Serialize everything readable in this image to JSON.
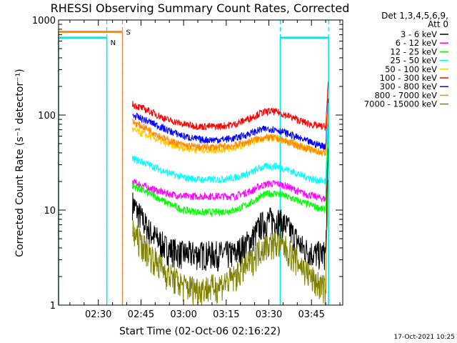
{
  "chart_data": {
    "type": "line",
    "title": "RHESSI Observing Summary Count Rates, Corrected",
    "xlabel": "Start Time (02-Oct-06 02:16:22)",
    "ylabel": "Corrected Count Rate (s⁻¹ detector⁻¹)",
    "yscale": "log",
    "ylim": [
      1,
      1000
    ],
    "xlim_minutes": [
      0,
      100
    ],
    "x_ticks": [
      {
        "minute": 14,
        "label": "02:30"
      },
      {
        "minute": 29,
        "label": "02:45"
      },
      {
        "minute": 44,
        "label": "03:00"
      },
      {
        "minute": 59,
        "label": "03:15"
      },
      {
        "minute": 74,
        "label": "03:30"
      },
      {
        "minute": 89,
        "label": "03:45"
      }
    ],
    "y_ticks": [
      {
        "value": 1,
        "label": "1"
      },
      {
        "value": 10,
        "label": "10"
      },
      {
        "value": 100,
        "label": "100"
      },
      {
        "value": 1000,
        "label": "1000"
      }
    ],
    "legend_header": [
      "Det 1,3,4,5,6,9,",
      "Att 0"
    ],
    "legend_placement": "right",
    "series": [
      {
        "name": "3 - 6 keV",
        "color": "#000000",
        "x": [
          26,
          32,
          38,
          44,
          50,
          56,
          62,
          68,
          71,
          74,
          77,
          80,
          86,
          90,
          94,
          95
        ],
        "y": [
          12,
          6,
          4,
          3.5,
          3.5,
          3.5,
          3.5,
          5,
          7,
          8,
          8,
          7,
          4,
          3.5,
          3.5,
          60
        ]
      },
      {
        "name": "6 - 12 keV",
        "color": "#ff00ff",
        "x": [
          26,
          32,
          38,
          44,
          50,
          56,
          62,
          68,
          71,
          74,
          77,
          80,
          86,
          90,
          94,
          95
        ],
        "y": [
          20,
          17,
          15,
          14,
          14,
          14,
          14,
          16,
          18,
          19,
          19,
          18,
          15,
          14,
          13,
          100
        ]
      },
      {
        "name": "12 - 25 keV",
        "color": "#00ff00",
        "x": [
          26,
          32,
          38,
          44,
          50,
          56,
          62,
          68,
          71,
          74,
          77,
          80,
          86,
          90,
          94,
          95
        ],
        "y": [
          18,
          15,
          12,
          10,
          9.5,
          9.5,
          10,
          12,
          14,
          15,
          15,
          14,
          12,
          11,
          10,
          90
        ]
      },
      {
        "name": "25 - 50 keV",
        "color": "#00ffff",
        "x": [
          26,
          32,
          38,
          44,
          50,
          56,
          62,
          68,
          71,
          74,
          77,
          80,
          86,
          90,
          94,
          95
        ],
        "y": [
          35,
          30,
          25,
          22,
          21,
          21,
          22,
          25,
          28,
          29,
          29,
          27,
          23,
          21,
          20,
          150
        ]
      },
      {
        "name": "50 - 100 keV",
        "color": "#ffcc00",
        "x": [
          26,
          32,
          38,
          44,
          50,
          56,
          62,
          68,
          71,
          74,
          77,
          80,
          86,
          90,
          94,
          95
        ],
        "y": [
          70,
          60,
          50,
          45,
          43,
          43,
          45,
          52,
          57,
          58,
          57,
          54,
          46,
          43,
          40,
          200
        ]
      },
      {
        "name": "100 - 300 keV",
        "color": "#ff0000",
        "x": [
          26,
          32,
          38,
          44,
          50,
          56,
          62,
          68,
          71,
          74,
          77,
          80,
          86,
          90,
          94,
          95
        ],
        "y": [
          130,
          110,
          90,
          80,
          76,
          76,
          80,
          95,
          105,
          110,
          108,
          100,
          85,
          78,
          75,
          250
        ]
      },
      {
        "name": "300 - 800 keV",
        "color": "#0000ff",
        "x": [
          26,
          32,
          38,
          44,
          50,
          56,
          62,
          68,
          71,
          74,
          77,
          80,
          86,
          90,
          94,
          95
        ],
        "y": [
          100,
          85,
          70,
          60,
          55,
          55,
          57,
          65,
          70,
          72,
          70,
          65,
          55,
          50,
          47,
          180
        ]
      },
      {
        "name": "800 - 7000 keV",
        "color": "#ff8800",
        "x": [
          26,
          32,
          38,
          44,
          50,
          56,
          62,
          68,
          71,
          74,
          77,
          80,
          86,
          90,
          94,
          95
        ],
        "y": [
          85,
          70,
          55,
          48,
          46,
          46,
          48,
          54,
          57,
          58,
          57,
          53,
          46,
          42,
          40,
          150
        ]
      },
      {
        "name": "7000 - 15000 keV",
        "color": "#808000",
        "x": [
          26,
          32,
          38,
          44,
          50,
          56,
          62,
          68,
          71,
          74,
          77,
          80,
          86,
          90,
          94,
          95
        ],
        "y": [
          6,
          3.5,
          2.2,
          1.6,
          1.5,
          1.6,
          2,
          3,
          4,
          4.5,
          4.5,
          4,
          2.5,
          1.8,
          1.5,
          40
        ]
      }
    ],
    "flags": [
      {
        "label": "S",
        "color": "#ff8800",
        "segments": [
          [
            0,
            22.5
          ]
        ],
        "value": 750,
        "boundaries": [
          22.5
        ]
      },
      {
        "label": "N",
        "color": "#00e5ee",
        "segments": [
          [
            0,
            17
          ],
          [
            78,
            95
          ]
        ],
        "value": 650,
        "boundaries": [
          17,
          78,
          95
        ]
      }
    ],
    "timestamp": "17-Oct-2021 10:25"
  }
}
